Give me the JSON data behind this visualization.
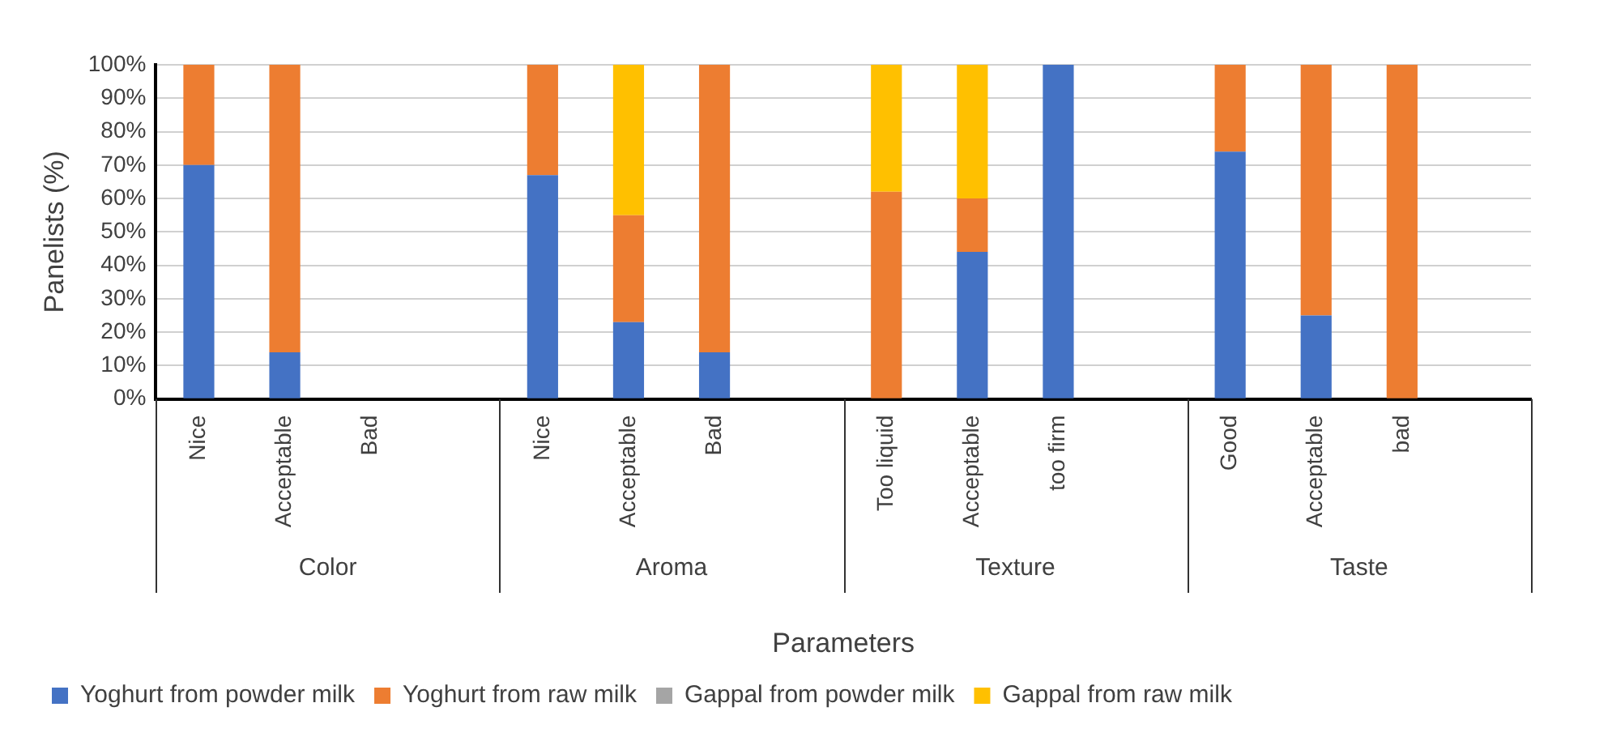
{
  "chart_data": {
    "type": "bar",
    "stacked": true,
    "xlabel": "Parameters",
    "ylabel": "Panelists (%)",
    "categories": [
      "Nice",
      "Acceptable",
      "Bad",
      null,
      "Nice",
      "Acceptable",
      "Bad",
      null,
      "Too liquid",
      "Acceptable",
      "too firm",
      null,
      "Good",
      "Acceptable",
      "bad",
      null
    ],
    "annotations": [
      "Color",
      "Aroma",
      "Texture",
      "Taste"
    ],
    "series": [
      {
        "name": "Yoghurt from powder milk",
        "color": "#4472c4",
        "values": [
          70,
          14,
          0,
          null,
          67,
          23,
          14,
          null,
          0,
          44,
          100,
          null,
          74,
          25,
          0,
          null
        ]
      },
      {
        "name": "Yoghurt from raw milk",
        "color": "#ed7d31",
        "values": [
          30,
          86,
          0,
          null,
          33,
          32,
          86,
          null,
          62,
          16,
          0,
          null,
          26,
          75,
          100,
          null
        ]
      },
      {
        "name": "Gappal from powder milk",
        "color": "#a5a5a5",
        "values": [
          0,
          0,
          0,
          null,
          0,
          0,
          0,
          null,
          0,
          0,
          0,
          null,
          0,
          0,
          0,
          null
        ]
      },
      {
        "name": "Gappal from raw milk",
        "color": "#ffc000",
        "values": [
          0,
          0,
          0,
          null,
          0,
          45,
          0,
          null,
          38,
          40,
          0,
          null,
          0,
          0,
          0,
          null
        ]
      }
    ],
    "ylim": [
      0,
      100
    ],
    "yticks": [
      {
        "value": 0,
        "label": "0%"
      },
      {
        "value": 10,
        "label": "10%"
      },
      {
        "value": 20,
        "label": "20%"
      },
      {
        "value": 30,
        "label": "30%"
      },
      {
        "value": 40,
        "label": "40%"
      },
      {
        "value": 50,
        "label": "50%"
      },
      {
        "value": 60,
        "label": "60%"
      },
      {
        "value": 70,
        "label": "70%"
      },
      {
        "value": 80,
        "label": "80%"
      },
      {
        "value": 90,
        "label": "90%"
      },
      {
        "value": 100,
        "label": "100%"
      }
    ],
    "grid": "y",
    "legend": "bottom"
  }
}
